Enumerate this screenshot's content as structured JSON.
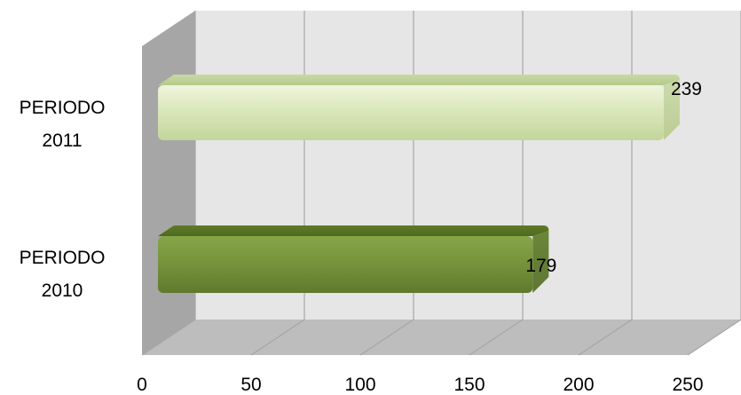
{
  "chart_data": {
    "type": "bar",
    "orientation": "horizontal",
    "style": "3d",
    "categories": [
      "PERIODO 2011",
      "PERIODO 2010"
    ],
    "category_lines": [
      [
        "PERIODO",
        "2011"
      ],
      [
        "PERIODO",
        "2010"
      ]
    ],
    "values": [
      239,
      179
    ],
    "data_labels": [
      "239",
      "179"
    ],
    "xlim": [
      0,
      250
    ],
    "xticks": [
      0,
      50,
      100,
      150,
      200,
      250
    ],
    "xtick_labels": [
      "0",
      "50",
      "100",
      "150",
      "200",
      "250"
    ],
    "grid": true,
    "legend": "none",
    "title": "",
    "xlabel": "",
    "ylabel": "",
    "colors": {
      "PERIODO 2011": "#d8e6b8",
      "PERIODO 2010": "#76923c",
      "back_wall": "#e6e6e6",
      "side_wall": "#a6a6a6",
      "floor": "#bdbdbd",
      "gridline": "#a6a6a6"
    }
  }
}
